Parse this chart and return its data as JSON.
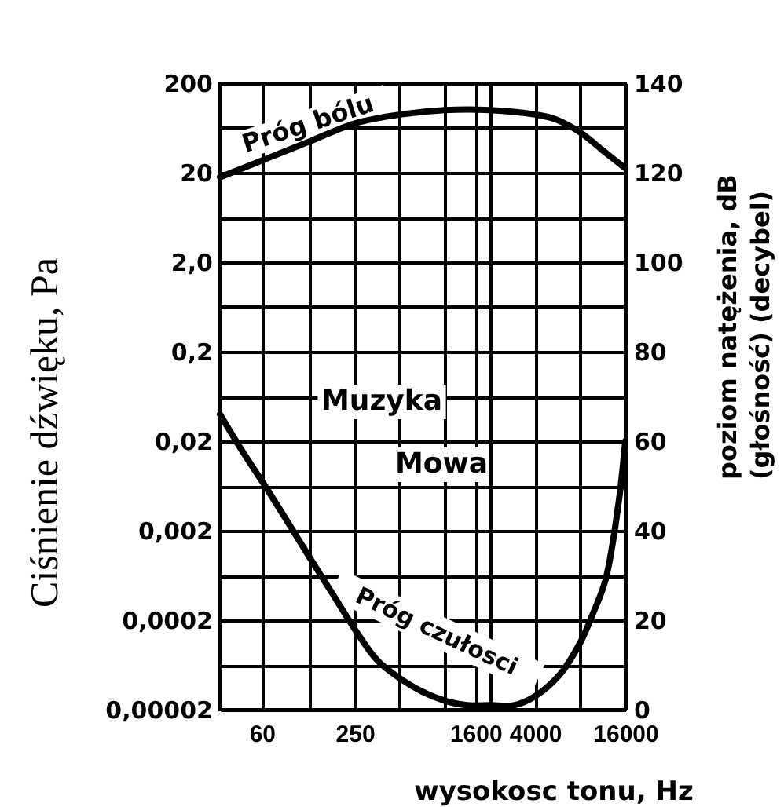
{
  "chart_data": {
    "type": "line",
    "xlabel": "wysokosc tonu, Hz",
    "ylabel": "Ciśnienie dźwięku, Pa",
    "y2label": "poziom natężenia, dB\n(głośność) (decybel)",
    "log": "xy",
    "xlim": [
      31.5,
      16000
    ],
    "xticks": [
      60,
      {
        "value": 125,
        "label": null
      },
      250,
      {
        "value": 500,
        "label": null
      },
      {
        "value": 1000,
        "label": null
      },
      1600,
      {
        "value": 2000,
        "label": null
      },
      4000,
      {
        "value": 8000,
        "label": null
      },
      16000
    ],
    "ylim": [
      2e-05,
      200
    ],
    "yticks": [
      {
        "value": 2e-05,
        "label": "0,00002"
      },
      {
        "value": 0.0002,
        "label": "0,0002"
      },
      {
        "value": 0.002,
        "label": "0,002"
      },
      {
        "value": 0.02,
        "label": "0,02"
      },
      {
        "value": 0.2,
        "label": "0,2"
      },
      {
        "value": 2,
        "label": "2,0"
      },
      20,
      200
    ],
    "y2lim": [
      0,
      140
    ],
    "y2ticks": [
      0,
      {
        "value": 10,
        "label": null
      },
      20,
      {
        "value": 30,
        "label": null
      },
      40,
      {
        "value": 50,
        "label": null
      },
      60,
      {
        "value": 70,
        "label": null
      },
      80,
      {
        "value": 90,
        "label": null
      },
      100,
      {
        "value": 110,
        "label": null
      },
      120,
      {
        "value": 130,
        "label": null
      },
      140
    ],
    "grid": true,
    "line_style": "solid",
    "annotations": [
      "Muzyka",
      "Mowa"
    ],
    "series": [
      {
        "name": "Próg bólu",
        "color": "#000000",
        "axis": "y2",
        "x": [
          31.5,
          63,
          125,
          250,
          500,
          1000,
          2000,
          4000,
          5400,
          8000,
          11300,
          16000
        ],
        "values": [
          119,
          123,
          127,
          131,
          133,
          134,
          134,
          133,
          132,
          129,
          125,
          121
        ]
      },
      {
        "name": "Próg czułosci",
        "color": "#000000",
        "axis": "y2",
        "x": [
          31.5,
          44,
          63,
          89,
          125,
          177,
          250,
          354,
          500,
          707,
          1000,
          1400,
          2000,
          2900,
          4000,
          5900,
          8000,
          9600,
          11800,
          14400,
          16000
        ],
        "values": [
          66,
          58,
          50,
          42,
          34,
          26,
          18,
          11,
          7,
          4,
          2,
          1,
          1,
          1,
          3,
          8,
          15,
          21,
          29,
          46,
          60
        ]
      }
    ]
  }
}
